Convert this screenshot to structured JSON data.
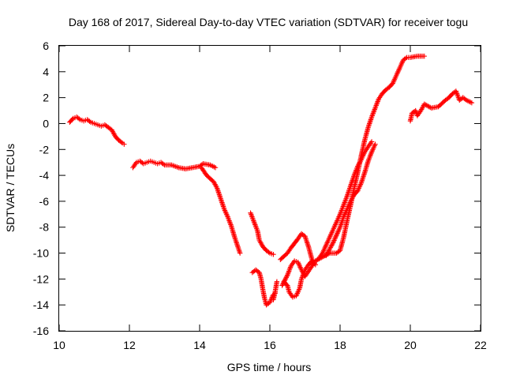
{
  "chart_data": {
    "type": "scatter",
    "title": "Day 168 of 2017, Sidereal Day-to-day VTEC variation (SDTVAR) for receiver togu",
    "xlabel": "GPS time / hours",
    "ylabel": "SDTVAR / TECUs",
    "xlim": [
      10,
      22
    ],
    "ylim": [
      -16,
      6
    ],
    "xticks": [
      "10",
      "12",
      "14",
      "16",
      "18",
      "20",
      "22"
    ],
    "yticks": [
      "6",
      "4",
      "2",
      "0",
      "-2",
      "-4",
      "-6",
      "-8",
      "-10",
      "-12",
      "-14",
      "-16"
    ],
    "grid": false,
    "legend": "none",
    "marker": "+",
    "color": "#ff0000",
    "series": [
      {
        "points": [
          [
            10.3,
            0.1
          ],
          [
            10.4,
            0.4
          ],
          [
            10.5,
            0.5
          ],
          [
            10.6,
            0.3
          ],
          [
            10.7,
            0.2
          ],
          [
            10.8,
            0.3
          ],
          [
            10.9,
            0.1
          ],
          [
            11.0,
            0.0
          ],
          [
            11.1,
            -0.1
          ],
          [
            11.2,
            -0.2
          ],
          [
            11.3,
            -0.1
          ],
          [
            11.4,
            -0.3
          ],
          [
            11.5,
            -0.5
          ],
          [
            11.6,
            -1.0
          ],
          [
            11.7,
            -1.3
          ],
          [
            11.8,
            -1.5
          ],
          [
            11.85,
            -1.6
          ]
        ]
      },
      {
        "points": [
          [
            12.1,
            -3.4
          ],
          [
            12.2,
            -3.0
          ],
          [
            12.3,
            -2.9
          ],
          [
            12.4,
            -3.1
          ],
          [
            12.5,
            -3.0
          ],
          [
            12.6,
            -2.9
          ],
          [
            12.7,
            -3.0
          ],
          [
            12.8,
            -3.1
          ],
          [
            12.9,
            -3.0
          ],
          [
            13.0,
            -3.2
          ],
          [
            13.2,
            -3.2
          ],
          [
            13.4,
            -3.4
          ],
          [
            13.6,
            -3.5
          ],
          [
            13.8,
            -3.4
          ],
          [
            14.0,
            -3.3
          ],
          [
            14.1,
            -3.1
          ],
          [
            14.3,
            -3.2
          ],
          [
            14.45,
            -3.4
          ]
        ]
      },
      {
        "points": [
          [
            14.05,
            -3.4
          ],
          [
            14.2,
            -4.0
          ],
          [
            14.4,
            -4.5
          ],
          [
            14.5,
            -5.0
          ],
          [
            14.6,
            -5.8
          ],
          [
            14.7,
            -6.6
          ],
          [
            14.8,
            -7.2
          ],
          [
            14.9,
            -7.9
          ],
          [
            15.0,
            -8.8
          ],
          [
            15.1,
            -9.6
          ],
          [
            15.15,
            -10.0
          ]
        ]
      },
      {
        "points": [
          [
            15.45,
            -6.9
          ],
          [
            15.55,
            -7.6
          ],
          [
            15.65,
            -8.3
          ],
          [
            15.7,
            -9.0
          ],
          [
            15.8,
            -9.5
          ],
          [
            15.9,
            -9.8
          ],
          [
            16.0,
            -10.0
          ],
          [
            16.1,
            -10.1
          ]
        ]
      },
      {
        "points": [
          [
            15.5,
            -11.5
          ],
          [
            15.6,
            -11.3
          ],
          [
            15.7,
            -11.5
          ],
          [
            15.75,
            -12.0
          ],
          [
            15.8,
            -12.8
          ],
          [
            15.85,
            -13.5
          ],
          [
            15.9,
            -14.0
          ],
          [
            16.0,
            -13.8
          ],
          [
            16.05,
            -13.5
          ],
          [
            16.1,
            -13.2
          ],
          [
            16.15,
            -13.1
          ]
        ]
      },
      {
        "points": [
          [
            16.1,
            -13.6
          ],
          [
            16.15,
            -13.0
          ],
          [
            16.2,
            -12.2
          ]
        ]
      },
      {
        "points": [
          [
            16.3,
            -10.5
          ],
          [
            16.5,
            -10.0
          ],
          [
            16.6,
            -9.6
          ],
          [
            16.8,
            -8.9
          ],
          [
            16.9,
            -8.5
          ],
          [
            17.0,
            -8.7
          ],
          [
            17.1,
            -9.5
          ],
          [
            17.2,
            -10.5
          ],
          [
            17.3,
            -10.9
          ]
        ]
      },
      {
        "points": [
          [
            16.35,
            -12.5
          ],
          [
            16.5,
            -11.7
          ],
          [
            16.6,
            -11.0
          ],
          [
            16.7,
            -10.6
          ],
          [
            16.8,
            -10.7
          ],
          [
            16.9,
            -11.3
          ],
          [
            17.0,
            -11.8
          ],
          [
            17.1,
            -11.4
          ],
          [
            17.2,
            -11.0
          ],
          [
            17.3,
            -10.6
          ]
        ]
      },
      {
        "points": [
          [
            16.4,
            -12.2
          ],
          [
            16.5,
            -12.5
          ],
          [
            16.55,
            -13.0
          ],
          [
            16.65,
            -13.4
          ],
          [
            16.75,
            -13.3
          ],
          [
            16.85,
            -12.7
          ],
          [
            16.9,
            -12.0
          ],
          [
            17.0,
            -11.3
          ],
          [
            17.1,
            -10.9
          ],
          [
            17.2,
            -10.6
          ]
        ]
      },
      {
        "points": [
          [
            17.3,
            -10.6
          ],
          [
            17.5,
            -10.3
          ],
          [
            17.7,
            -10.0
          ],
          [
            17.9,
            -10.0
          ],
          [
            18.0,
            -9.8
          ],
          [
            18.1,
            -8.8
          ],
          [
            18.2,
            -7.5
          ],
          [
            18.3,
            -6.3
          ],
          [
            18.4,
            -5.0
          ],
          [
            18.5,
            -3.8
          ],
          [
            18.6,
            -2.5
          ],
          [
            18.7,
            -1.3
          ],
          [
            18.8,
            -0.3
          ],
          [
            18.9,
            0.5
          ],
          [
            19.0,
            1.2
          ],
          [
            19.1,
            1.9
          ],
          [
            19.2,
            2.3
          ],
          [
            19.3,
            2.6
          ],
          [
            19.4,
            2.8
          ],
          [
            19.5,
            3.1
          ],
          [
            19.6,
            3.7
          ],
          [
            19.7,
            4.3
          ],
          [
            19.8,
            4.9
          ],
          [
            19.9,
            5.1
          ],
          [
            20.0,
            5.1
          ],
          [
            20.2,
            5.2
          ],
          [
            20.4,
            5.2
          ]
        ]
      },
      {
        "points": [
          [
            17.4,
            -10.4
          ],
          [
            17.5,
            -10.0
          ],
          [
            17.6,
            -9.4
          ],
          [
            17.7,
            -8.8
          ],
          [
            17.8,
            -8.2
          ],
          [
            17.9,
            -7.6
          ],
          [
            18.0,
            -7.0
          ],
          [
            18.1,
            -6.3
          ],
          [
            18.2,
            -5.6
          ],
          [
            18.3,
            -4.8
          ],
          [
            18.4,
            -4.0
          ],
          [
            18.5,
            -3.3
          ],
          [
            18.6,
            -2.8
          ],
          [
            18.7,
            -2.2
          ],
          [
            18.8,
            -1.8
          ],
          [
            18.9,
            -1.4
          ]
        ]
      },
      {
        "points": [
          [
            17.6,
            -10.2
          ],
          [
            17.8,
            -9.2
          ],
          [
            18.0,
            -8.0
          ],
          [
            18.1,
            -7.2
          ],
          [
            18.2,
            -6.6
          ],
          [
            18.3,
            -6.0
          ],
          [
            18.4,
            -5.5
          ],
          [
            18.5,
            -5.2
          ],
          [
            18.6,
            -4.6
          ],
          [
            18.7,
            -3.8
          ],
          [
            18.8,
            -2.9
          ],
          [
            18.9,
            -2.2
          ],
          [
            19.0,
            -1.6
          ]
        ]
      },
      {
        "points": [
          [
            20.0,
            0.2
          ],
          [
            20.05,
            0.8
          ],
          [
            20.15,
            1.0
          ],
          [
            20.2,
            0.6
          ],
          [
            20.3,
            1.0
          ],
          [
            20.4,
            1.5
          ],
          [
            20.6,
            1.2
          ],
          [
            20.8,
            1.3
          ],
          [
            21.0,
            1.8
          ],
          [
            21.1,
            2.0
          ],
          [
            21.2,
            2.3
          ],
          [
            21.3,
            2.5
          ],
          [
            21.4,
            1.8
          ],
          [
            21.5,
            2.0
          ],
          [
            21.6,
            1.8
          ],
          [
            21.75,
            1.6
          ]
        ]
      }
    ]
  }
}
